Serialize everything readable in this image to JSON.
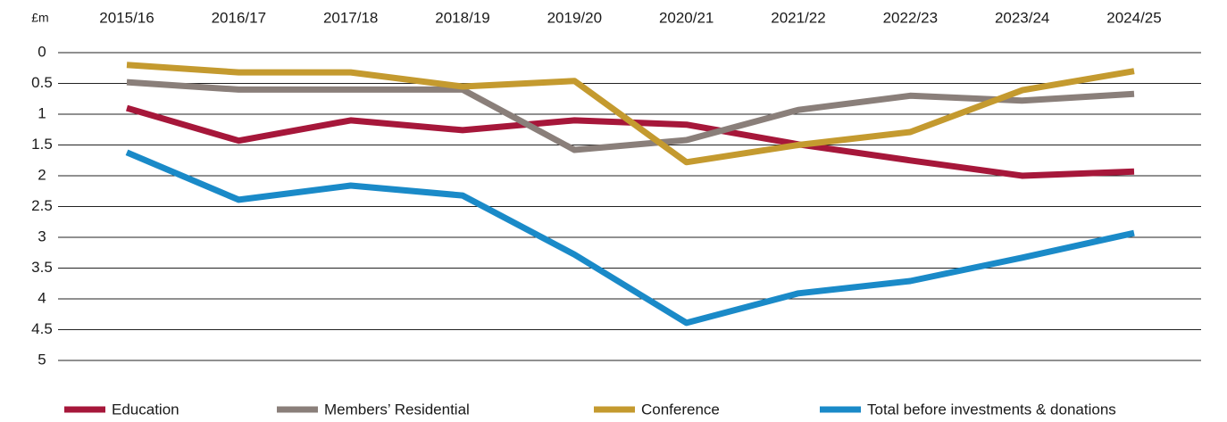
{
  "chart_data": {
    "type": "line",
    "y_unit_label": "£m",
    "categories": [
      "2015/16",
      "2016/17",
      "2017/18",
      "2018/19",
      "2019/20",
      "2020/21",
      "2021/22",
      "2022/23",
      "2023/24",
      "2024/25"
    ],
    "series": [
      {
        "name": "Education",
        "color": "#a6173a",
        "values": [
          0.9,
          1.43,
          1.1,
          1.26,
          1.1,
          1.17,
          1.49,
          1.75,
          2.0,
          1.93
        ]
      },
      {
        "name": "Members’ Residential",
        "color": "#8a7f7a",
        "values": [
          0.48,
          0.6,
          0.6,
          0.6,
          1.58,
          1.42,
          0.93,
          0.7,
          0.78,
          0.67
        ]
      },
      {
        "name": "Conference",
        "color": "#c49a2f",
        "values": [
          0.2,
          0.32,
          0.32,
          0.55,
          0.46,
          1.78,
          1.5,
          1.29,
          0.61,
          0.3
        ]
      },
      {
        "name": "Total before investments & donations",
        "color": "#1a8ac8",
        "values": [
          1.62,
          2.39,
          2.16,
          2.32,
          3.28,
          4.39,
          3.91,
          3.71,
          3.33,
          2.93
        ]
      }
    ],
    "ylim": [
      0,
      5
    ],
    "y_inverted": true,
    "yticks": [
      0,
      0.5,
      1,
      1.5,
      2,
      2.5,
      3,
      3.5,
      4,
      4.5,
      5
    ],
    "grid": true,
    "legend": "bottom"
  }
}
